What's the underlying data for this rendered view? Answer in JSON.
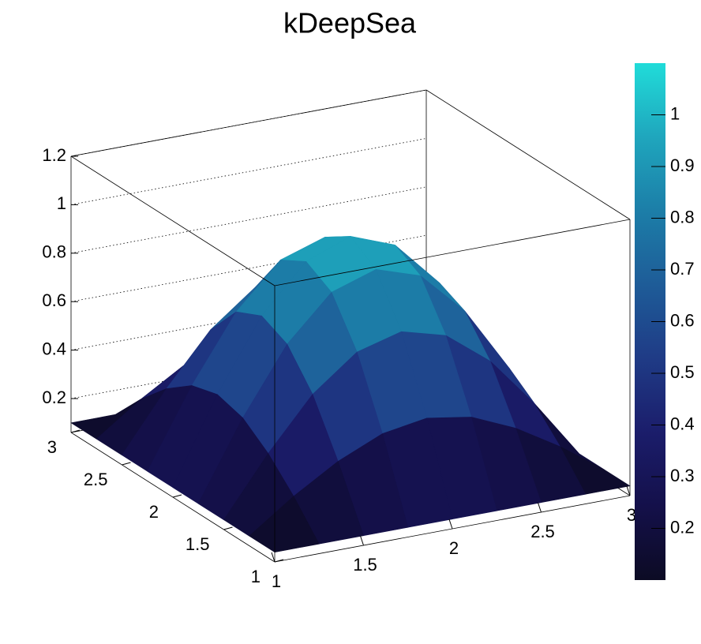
{
  "chart_data": {
    "type": "surface",
    "title": "kDeepSea",
    "x": [
      1,
      1.25,
      1.5,
      1.75,
      2,
      2.25,
      2.5,
      2.75,
      3
    ],
    "y": [
      1,
      1.25,
      1.5,
      1.75,
      2,
      2.25,
      2.5,
      2.75,
      3
    ],
    "z": [
      [
        0.1,
        0.1,
        0.1,
        0.1,
        0.1,
        0.1,
        0.1,
        0.1,
        0.1
      ],
      [
        0.1,
        0.23,
        0.34,
        0.42,
        0.45,
        0.42,
        0.34,
        0.23,
        0.1
      ],
      [
        0.1,
        0.34,
        0.55,
        0.69,
        0.74,
        0.69,
        0.55,
        0.34,
        0.1
      ],
      [
        0.1,
        0.42,
        0.69,
        0.87,
        0.93,
        0.87,
        0.69,
        0.42,
        0.1
      ],
      [
        0.1,
        0.45,
        0.74,
        0.93,
        1.0,
        0.93,
        0.74,
        0.45,
        0.1
      ],
      [
        0.1,
        0.42,
        0.69,
        0.87,
        0.93,
        0.87,
        0.69,
        0.42,
        0.1
      ],
      [
        0.1,
        0.34,
        0.55,
        0.69,
        0.74,
        0.69,
        0.55,
        0.34,
        0.1
      ],
      [
        0.1,
        0.23,
        0.34,
        0.42,
        0.45,
        0.42,
        0.34,
        0.23,
        0.1
      ],
      [
        0.1,
        0.1,
        0.1,
        0.1,
        0.1,
        0.1,
        0.1,
        0.1,
        0.1
      ]
    ],
    "xlim": [
      1,
      3
    ],
    "ylim": [
      1,
      3
    ],
    "zlim": [
      0.06,
      1.2
    ],
    "xticks": [
      1,
      1.5,
      2,
      2.5,
      3
    ],
    "yticks": [
      1,
      1.5,
      2,
      2.5,
      3
    ],
    "zticks": [
      0.2,
      0.4,
      0.6,
      0.8,
      1,
      1.2
    ],
    "grid": true,
    "colorbar_lim": [
      0.1,
      1.1
    ],
    "colorbar_ticks": [
      0.2,
      0.3,
      0.4,
      0.5,
      0.6,
      0.7,
      0.8,
      0.9,
      1
    ],
    "palette": [
      "#0c0b24",
      "#14104a",
      "#1b1d6b",
      "#1f3b86",
      "#1e5c98",
      "#1c7ea8",
      "#1fa6bd",
      "#20dcd9"
    ]
  }
}
